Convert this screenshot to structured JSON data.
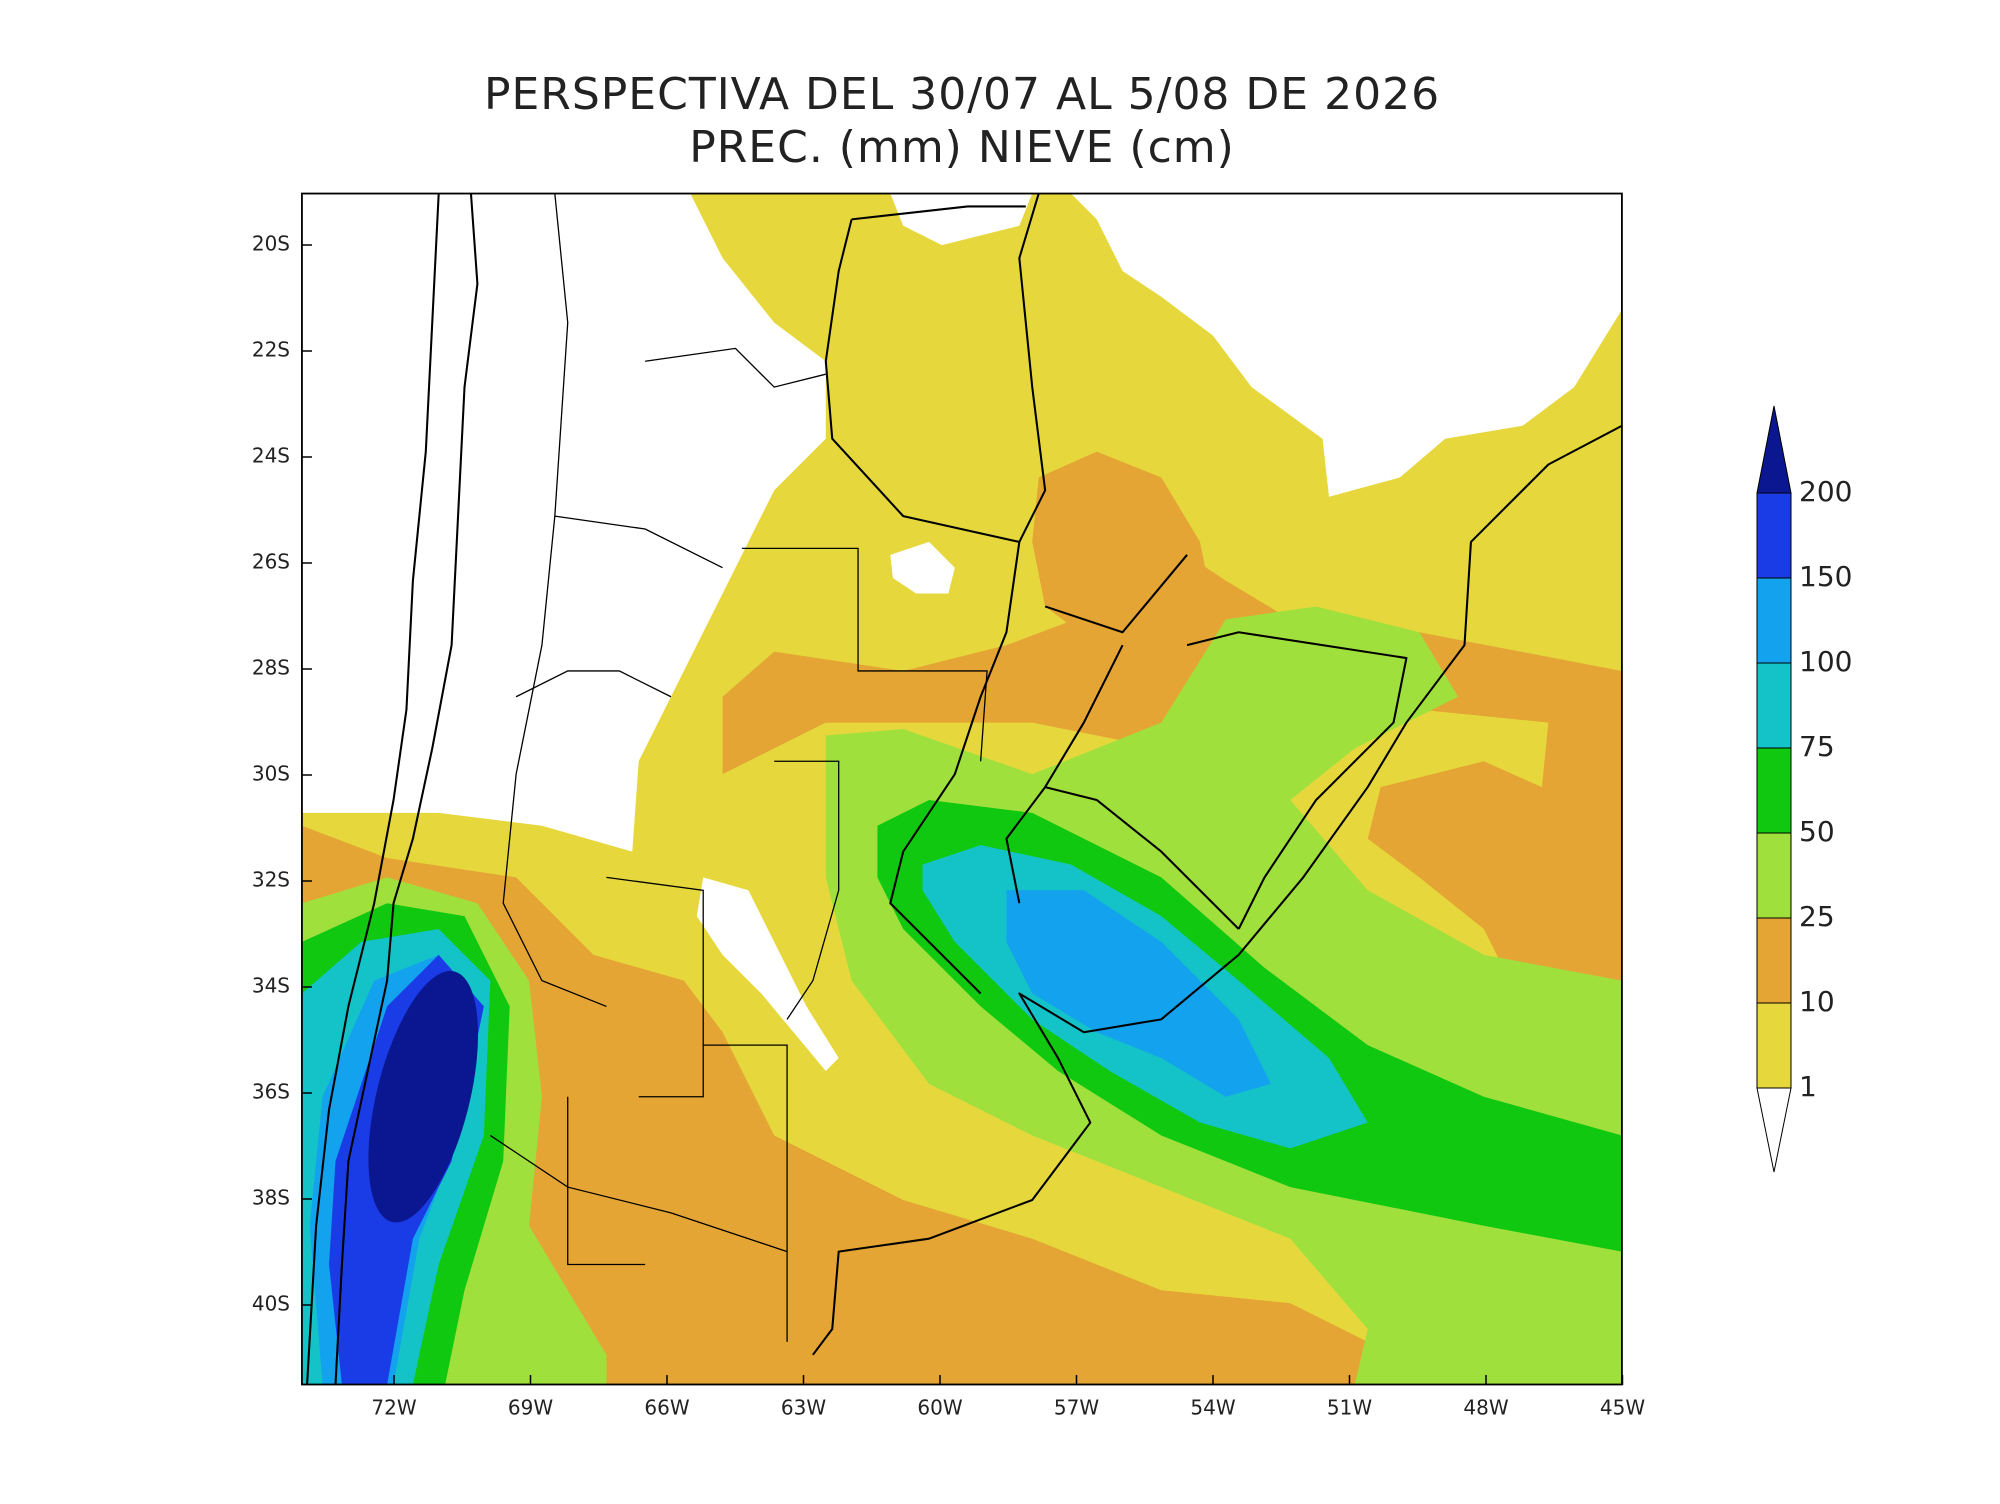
{
  "title": [
    "PERSPECTIVA DEL 30/07 AL 5/08 DE 2026",
    "PREC. (mm) NIEVE (cm)"
  ],
  "lat_labels": [
    "20S",
    "22S",
    "24S",
    "26S",
    "28S",
    "30S",
    "32S",
    "34S",
    "36S",
    "38S",
    "40S"
  ],
  "lon_labels": [
    "72W",
    "69W",
    "66W",
    "63W",
    "60W",
    "57W",
    "54W",
    "51W",
    "48W",
    "45W"
  ],
  "legend": {
    "labels": [
      "200",
      "150",
      "100",
      "75",
      "50",
      "25",
      "10",
      "1"
    ],
    "colors": [
      "#0b1790",
      "#1a3ce6",
      "#12a2ee",
      "#14c3c8",
      "#10c810",
      "#a0e03c",
      "#e4a534",
      "#e6d83c",
      "#ffffff"
    ]
  }
}
